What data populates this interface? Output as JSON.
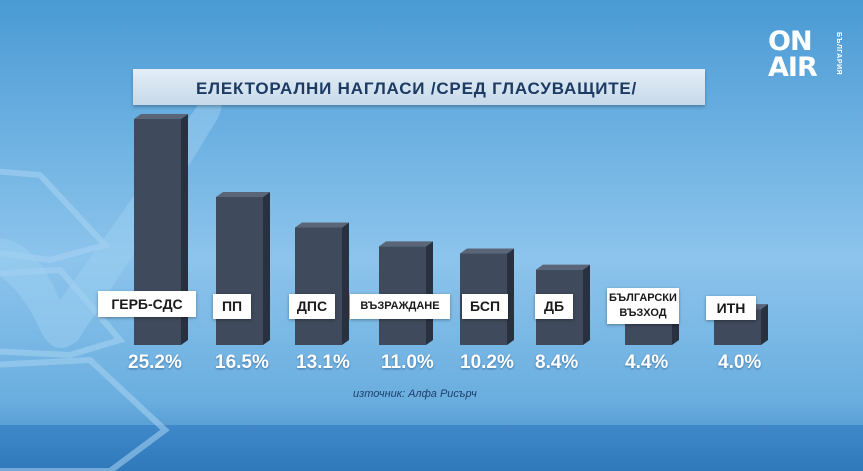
{
  "logo": {
    "line1": "ON",
    "line2": "AIR",
    "side": "БЪЛГАРИЯ"
  },
  "title": "ЕЛЕКТОРАЛНИ НАГЛАСИ /СРЕД ГЛАСУВАЩИТЕ/",
  "source": "източник: Алфа Рисърч",
  "colors": {
    "bar_front": "#3f4a5c",
    "bar_side": "#283140",
    "bar_top": "#5a6578"
  },
  "chart_data": {
    "type": "bar",
    "title": "ЕЛЕКТОРАЛНИ НАГЛАСИ /СРЕД ГЛАСУВАЩИТЕ/",
    "categories": [
      "ГЕРБ-СДС",
      "ПП",
      "ДПС",
      "ВЪЗРАЖДАНЕ",
      "БСП",
      "ДБ",
      "БЪЛГАРСКИ ВЪЗХОД",
      "ИТН"
    ],
    "values": [
      25.2,
      16.5,
      13.1,
      11.0,
      10.2,
      8.4,
      4.4,
      4.0
    ],
    "value_labels": [
      "25.2%",
      "16.5%",
      "13.1%",
      "11.0%",
      "10.2%",
      "8.4%",
      "4.4%",
      "4.0%"
    ],
    "unit": "%",
    "ylim": [
      0,
      26
    ],
    "grid": false,
    "legend": "none"
  }
}
